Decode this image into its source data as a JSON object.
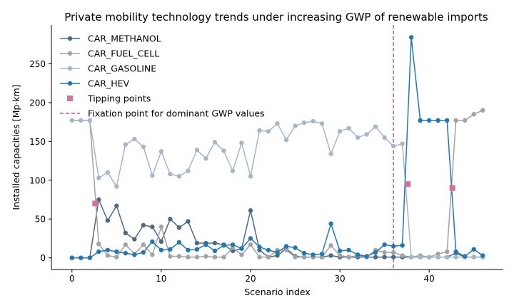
{
  "chart_data": {
    "type": "line",
    "title": "Private mobility technology trends under increasing GWP of renewable imports",
    "xlabel": "Scenario index",
    "ylabel": "Installed capacities [Mp·km]",
    "xlim": [
      -2.3,
      48.3
    ],
    "ylim": [
      -15,
      300
    ],
    "xticks": [
      0,
      10,
      20,
      30,
      40
    ],
    "yticks": [
      0,
      50,
      100,
      150,
      200,
      250
    ],
    "grid": false,
    "legend_position": "top-left",
    "x": [
      0,
      1,
      2,
      3,
      4,
      5,
      6,
      7,
      8,
      9,
      10,
      11,
      12,
      13,
      14,
      15,
      16,
      17,
      18,
      19,
      20,
      21,
      22,
      23,
      24,
      25,
      26,
      27,
      28,
      29,
      30,
      31,
      32,
      33,
      34,
      35,
      36,
      37,
      38,
      39,
      40,
      41,
      42,
      43,
      44,
      45,
      46
    ],
    "series": [
      {
        "name": "CAR_METHANOL",
        "color": "#4a6a89",
        "values": [
          0,
          0,
          0,
          75,
          48,
          67,
          32,
          24,
          42,
          40,
          21,
          50,
          39,
          47,
          19,
          19,
          19,
          17,
          9,
          12,
          61,
          10,
          1,
          3,
          12,
          2,
          1,
          1,
          1,
          3,
          1,
          1,
          1,
          1,
          1,
          1,
          1,
          1,
          1,
          1,
          1,
          1,
          1,
          6,
          1,
          1,
          1
        ]
      },
      {
        "name": "CAR_FUEL_CELL",
        "color": "#a3a3a3",
        "values": [
          177,
          177,
          177,
          18,
          3,
          1,
          17,
          5,
          17,
          4,
          40,
          2,
          2,
          1,
          1,
          2,
          1,
          1,
          13,
          4,
          17,
          1,
          1,
          10,
          10,
          1,
          1,
          1,
          1,
          16,
          3,
          1,
          3,
          1,
          10,
          7,
          7,
          3,
          1,
          3,
          1,
          5,
          8,
          177,
          177,
          185,
          190
        ]
      },
      {
        "name": "CAR_GASOLINE",
        "color": "#a5b6c8",
        "values": [
          177,
          177,
          177,
          103,
          110,
          92,
          146,
          153,
          143,
          106,
          137,
          108,
          105,
          112,
          139,
          128,
          149,
          138,
          112,
          148,
          105,
          164,
          163,
          173,
          152,
          170,
          174,
          176,
          173,
          134,
          163,
          167,
          155,
          159,
          169,
          155,
          144,
          147,
          1,
          1,
          1,
          1,
          1,
          1,
          1,
          1,
          1
        ]
      },
      {
        "name": "CAR_HEV",
        "color": "#1f78b4",
        "values": [
          0,
          0,
          0,
          8,
          10,
          8,
          6,
          4,
          7,
          21,
          10,
          11,
          20,
          10,
          11,
          17,
          9,
          16,
          17,
          12,
          25,
          14,
          10,
          7,
          15,
          13,
          6,
          4,
          5,
          44,
          9,
          10,
          4,
          2,
          7,
          17,
          15,
          16,
          284,
          177,
          177,
          177,
          177,
          8,
          2,
          11,
          3
        ]
      }
    ],
    "tipping_points": {
      "name": "Tipping points",
      "color": "#d4709a",
      "x": [
        2.6,
        37.6,
        42.6
      ],
      "y": [
        70,
        95,
        90
      ]
    },
    "fixation_line": {
      "name": "Fixation point for dominant GWP values",
      "color": "#d4578a",
      "x": 36
    }
  }
}
